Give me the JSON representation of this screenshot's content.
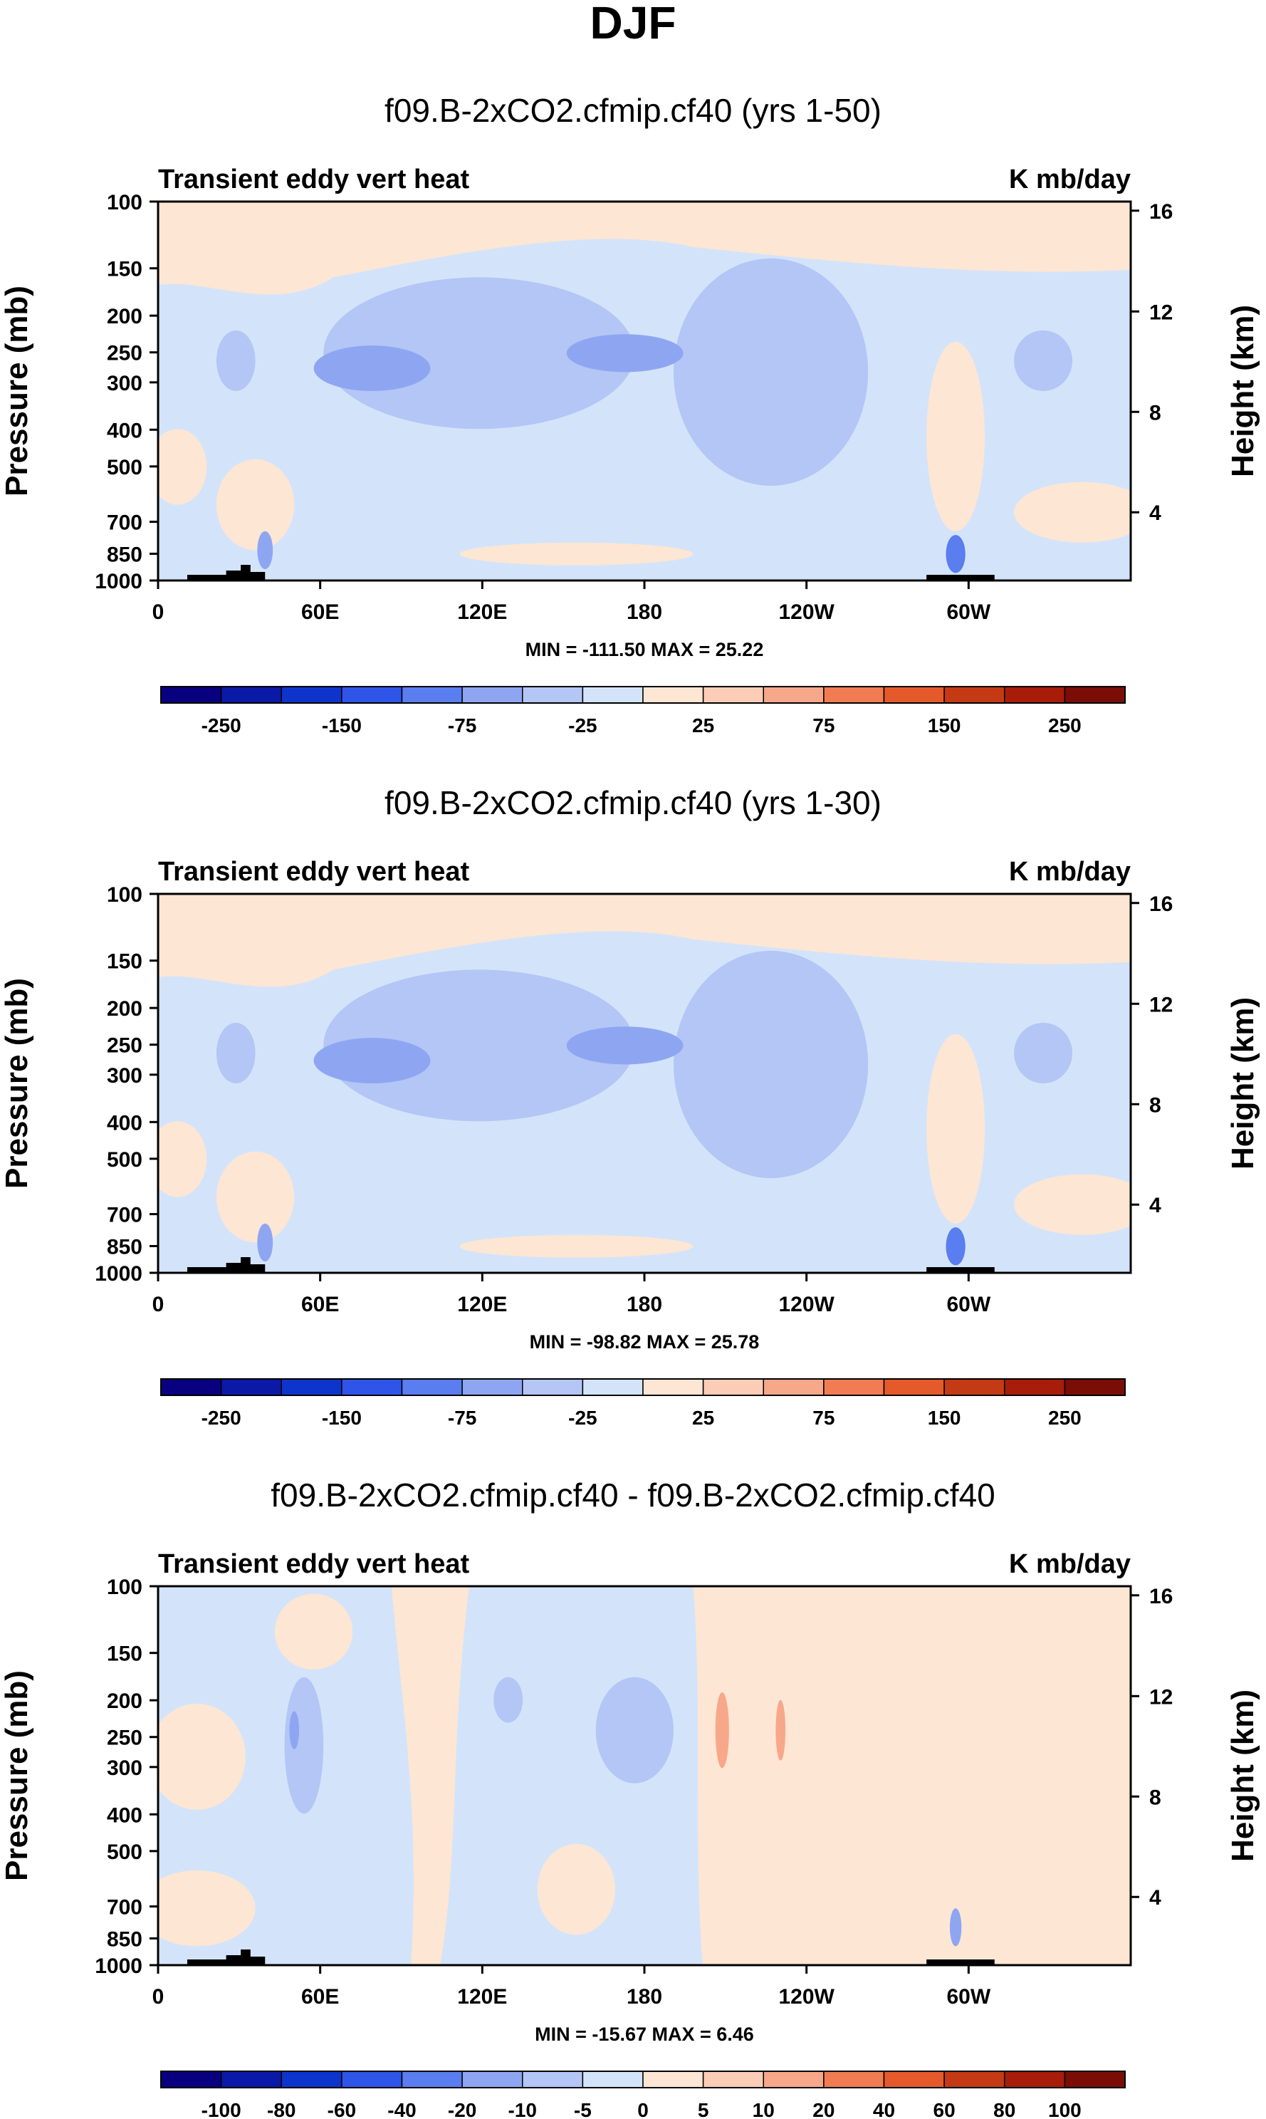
{
  "page_title": "DJF",
  "chart_data": [
    {
      "type": "heatmap",
      "title": "f09.B-2xCO2.cfmip.cf40 (yrs 1-50)",
      "left_label": "Transient eddy vert heat",
      "units": "K mb/day",
      "ylabel": "Pressure (mb)",
      "y2label": "Height (km)",
      "yticks": [
        "100",
        "150",
        "200",
        "250",
        "300",
        "400",
        "500",
        "700",
        "850",
        "1000"
      ],
      "y2ticks": [
        "16",
        "12",
        "8",
        "4"
      ],
      "xticks": [
        "0",
        "60E",
        "120E",
        "180",
        "120W",
        "60W"
      ],
      "minmax": "MIN = -111.50  MAX =  25.22",
      "colorbar_labels": [
        "-250",
        "-150",
        "-75",
        "-25",
        "25",
        "75",
        "150",
        "250"
      ],
      "colorbar_kind": "abs"
    },
    {
      "type": "heatmap",
      "title": "f09.B-2xCO2.cfmip.cf40 (yrs 1-30)",
      "left_label": "Transient eddy vert heat",
      "units": "K mb/day",
      "ylabel": "Pressure (mb)",
      "y2label": "Height (km)",
      "yticks": [
        "100",
        "150",
        "200",
        "250",
        "300",
        "400",
        "500",
        "700",
        "850",
        "1000"
      ],
      "y2ticks": [
        "16",
        "12",
        "8",
        "4"
      ],
      "xticks": [
        "0",
        "60E",
        "120E",
        "180",
        "120W",
        "60W"
      ],
      "minmax": "MIN = -98.82  MAX =  25.78",
      "colorbar_labels": [
        "-250",
        "-150",
        "-75",
        "-25",
        "25",
        "75",
        "150",
        "250"
      ],
      "colorbar_kind": "abs"
    },
    {
      "type": "heatmap",
      "title": "f09.B-2xCO2.cfmip.cf40 - f09.B-2xCO2.cfmip.cf40",
      "left_label": "Transient eddy vert heat",
      "units": "K mb/day",
      "ylabel": "Pressure (mb)",
      "y2label": "Height (km)",
      "yticks": [
        "100",
        "150",
        "200",
        "250",
        "300",
        "400",
        "500",
        "700",
        "850",
        "1000"
      ],
      "y2ticks": [
        "16",
        "12",
        "8",
        "4"
      ],
      "xticks": [
        "0",
        "60E",
        "120E",
        "180",
        "120W",
        "60W"
      ],
      "minmax": "MIN = -15.67  MAX =  6.46",
      "colorbar_labels": [
        "-100",
        "-80",
        "-60",
        "-40",
        "-20",
        "-10",
        "-5",
        "0",
        "5",
        "10",
        "20",
        "40",
        "60",
        "80",
        "100"
      ],
      "colorbar_kind": "diff"
    }
  ],
  "colors": {
    "background": "#ffffff",
    "palette": [
      "#08007f",
      "#0a1aa6",
      "#0d35cc",
      "#2f55e8",
      "#5a7df0",
      "#8ea6f2",
      "#b3c6f5",
      "#d3e4fa",
      "#fde6d4",
      "#fbcdb6",
      "#f7a88a",
      "#f17b52",
      "#e55a2a",
      "#c33a14",
      "#8e1a08"
    ],
    "pos_light": "#fde6d4",
    "neg_light": "#d3e4fa",
    "neg_mid": "#b3c6f5",
    "neg_strong": "#8ea6f2",
    "neg_deep": "#5a7df0",
    "pos_mid": "#f7a88a",
    "topography": "#000000"
  }
}
